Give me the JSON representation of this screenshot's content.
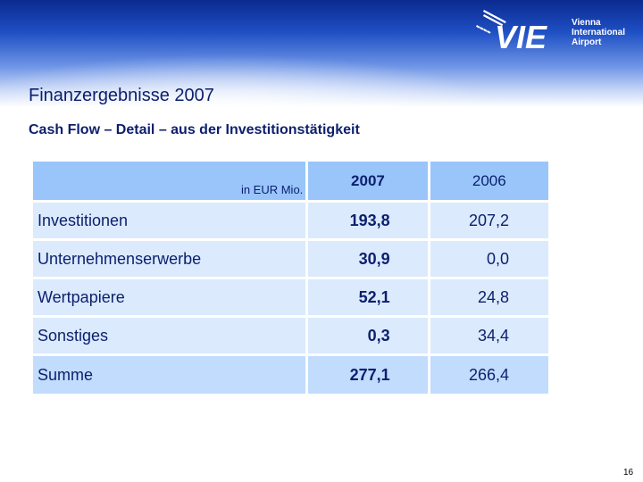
{
  "logo": {
    "mark": "VIE",
    "lines": [
      "Vienna",
      "International",
      "Airport"
    ],
    "colors": {
      "mark": "#ffffff",
      "text": "#ffffff"
    },
    "icon": "airplane-icon"
  },
  "header": {
    "title": "Finanzergebnisse 2007",
    "subtitle": "Cash Flow – Detail – aus der Investitionstätigkeit"
  },
  "table": {
    "unit_label": "in EUR Mio.",
    "columns": [
      "2007",
      "2006"
    ],
    "rows": [
      {
        "label": "Investitionen",
        "v2007": "193,8",
        "v2006": "207,2"
      },
      {
        "label": "Unternehmenserwerbe",
        "v2007": "30,9",
        "v2006": "0,0"
      },
      {
        "label": "Wertpapiere",
        "v2007": "52,1",
        "v2006": "24,8"
      },
      {
        "label": "Sonstiges",
        "v2007": "0,3",
        "v2006": "34,4"
      }
    ],
    "total": {
      "label": "Summe",
      "v2007": "277,1",
      "v2006": "266,4"
    },
    "colors": {
      "header": "#99c5fb",
      "body": "#dbeafd",
      "total": "#c1dcfc",
      "text": "#0c1f6e"
    }
  },
  "footer": {
    "page_number": "16"
  }
}
